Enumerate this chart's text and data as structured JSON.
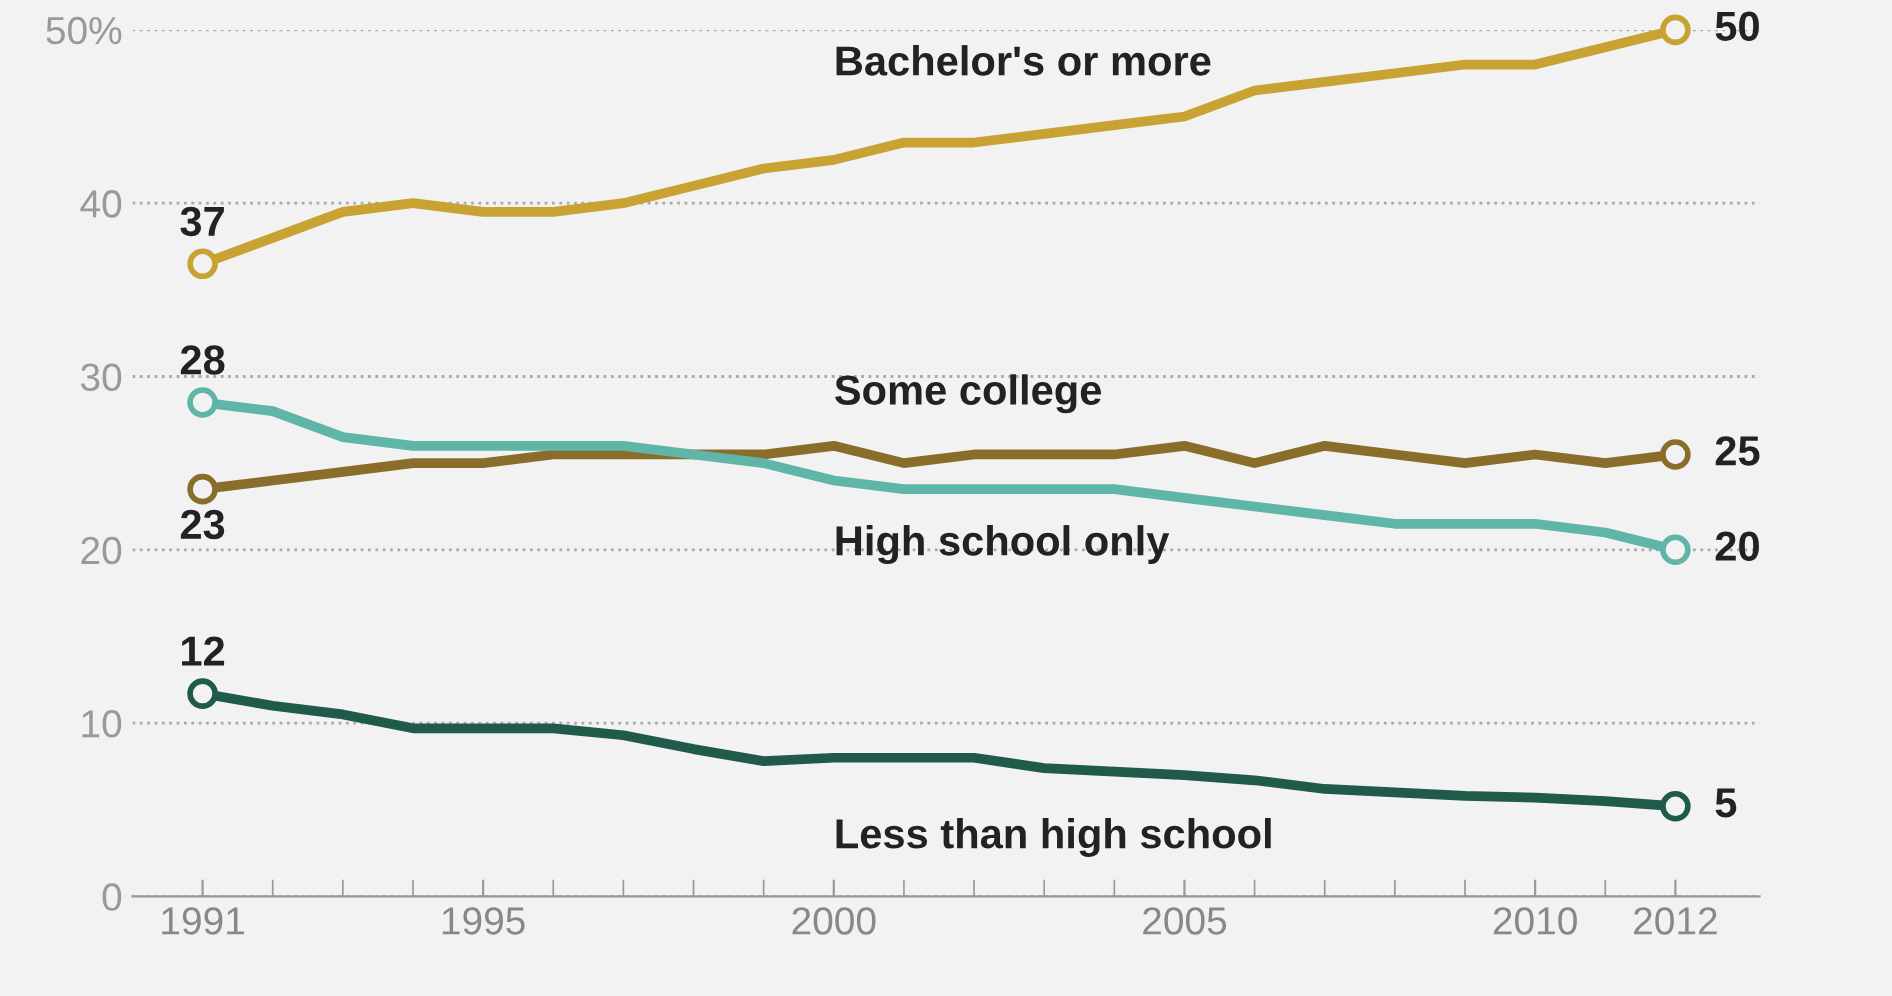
{
  "chart_data": {
    "type": "line",
    "x": [
      1991,
      1992,
      1993,
      1994,
      1995,
      1996,
      1997,
      1998,
      1999,
      2000,
      2001,
      2002,
      2003,
      2004,
      2005,
      2006,
      2007,
      2008,
      2009,
      2010,
      2011,
      2012
    ],
    "series": [
      {
        "name": "Bachelor's or more",
        "color": "#c9a234",
        "values": [
          36.5,
          38,
          39.5,
          40,
          39.5,
          39.5,
          40,
          41,
          42,
          42.5,
          43.5,
          43.5,
          44,
          44.5,
          45,
          46.5,
          47,
          47.5,
          48,
          48,
          49,
          50
        ],
        "value_labels": [
          "37",
          null,
          null,
          null,
          null,
          null,
          null,
          null,
          null,
          null,
          null,
          null,
          null,
          null,
          null,
          null,
          null,
          null,
          null,
          null,
          null,
          "50"
        ]
      },
      {
        "name": "Some college",
        "color": "#8a6d2a",
        "values": [
          23.5,
          24,
          24.5,
          25,
          25,
          25.5,
          25.5,
          25.5,
          25.5,
          26,
          25,
          25.5,
          25.5,
          25.5,
          26,
          25,
          26,
          25.5,
          25,
          25.5,
          25,
          25.5
        ],
        "value_labels": [
          "23",
          null,
          null,
          null,
          null,
          null,
          null,
          null,
          null,
          null,
          null,
          null,
          null,
          null,
          null,
          null,
          null,
          null,
          null,
          null,
          null,
          "25"
        ]
      },
      {
        "name": "High school only",
        "color": "#5fb5a8",
        "values": [
          28.5,
          28,
          26.5,
          26,
          26,
          26,
          26,
          25.5,
          25,
          24,
          23.5,
          23.5,
          23.5,
          23.5,
          23,
          22.5,
          22,
          21.5,
          21.5,
          21.5,
          21,
          20
        ],
        "value_labels": [
          "28",
          null,
          null,
          null,
          null,
          null,
          null,
          null,
          null,
          null,
          null,
          null,
          null,
          null,
          null,
          null,
          null,
          null,
          null,
          null,
          null,
          "20"
        ]
      },
      {
        "name": "Less than high school",
        "color": "#1f5a4a",
        "values": [
          11.7,
          11,
          10.5,
          9.7,
          9.7,
          9.7,
          9.3,
          8.5,
          7.8,
          8,
          8,
          8,
          7.4,
          7.2,
          7,
          6.7,
          6.2,
          6,
          5.8,
          5.7,
          5.5,
          5.2
        ],
        "value_labels": [
          "12",
          null,
          null,
          null,
          null,
          null,
          null,
          null,
          null,
          null,
          null,
          null,
          null,
          null,
          null,
          null,
          null,
          null,
          null,
          null,
          null,
          "5"
        ]
      }
    ],
    "xlim": [
      1990,
      2013.2
    ],
    "xticks": [
      1991,
      1995,
      2000,
      2005,
      2010,
      2012
    ],
    "ylim": [
      0,
      50
    ],
    "yticks": [
      0,
      10,
      20,
      30,
      40,
      {
        "value": 50,
        "label": "50%"
      }
    ],
    "grid": "y",
    "line_style": "solid",
    "legend": false
  }
}
